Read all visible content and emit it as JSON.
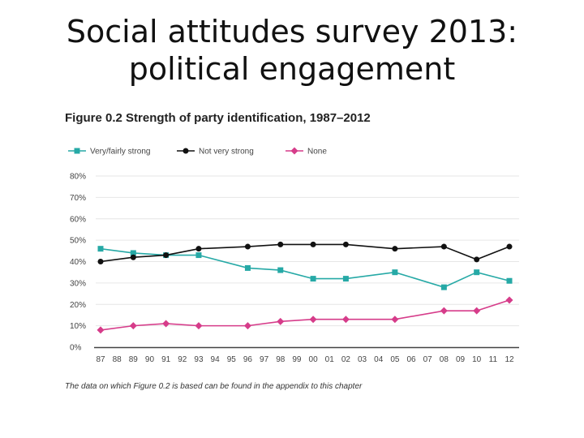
{
  "slide": {
    "title_line1": "Social attitudes survey 2013:",
    "title_line2": "political engagement"
  },
  "chart_data": {
    "type": "line",
    "title": "Figure 0.2 Strength of party identification, 1987–2012",
    "categories": [
      "87",
      "88",
      "89",
      "90",
      "91",
      "92",
      "93",
      "94",
      "95",
      "96",
      "97",
      "98",
      "99",
      "00",
      "01",
      "02",
      "03",
      "04",
      "05",
      "06",
      "07",
      "08",
      "09",
      "10",
      "11",
      "12"
    ],
    "ylim": [
      0,
      80
    ],
    "yticks": [
      "0%",
      "10%",
      "20%",
      "30%",
      "40%",
      "50%",
      "60%",
      "70%",
      "80%"
    ],
    "grid": true,
    "legend_position": "top",
    "series": [
      {
        "name": "Very/fairly strong",
        "color": "#26a9a6",
        "marker": "square",
        "points": [
          [
            "87",
            46
          ],
          [
            "89",
            44
          ],
          [
            "91",
            43
          ],
          [
            "93",
            43
          ],
          [
            "96",
            37
          ],
          [
            "98",
            36
          ],
          [
            "00",
            32
          ],
          [
            "02",
            32
          ],
          [
            "05",
            35
          ],
          [
            "08",
            28
          ],
          [
            "10",
            35
          ],
          [
            "12",
            31
          ]
        ]
      },
      {
        "name": "Not very strong",
        "color": "#111111",
        "marker": "circle",
        "points": [
          [
            "87",
            40
          ],
          [
            "89",
            42
          ],
          [
            "91",
            43
          ],
          [
            "93",
            46
          ],
          [
            "96",
            47
          ],
          [
            "98",
            48
          ],
          [
            "00",
            48
          ],
          [
            "02",
            48
          ],
          [
            "05",
            46
          ],
          [
            "08",
            47
          ],
          [
            "10",
            41
          ],
          [
            "12",
            47
          ]
        ]
      },
      {
        "name": "None",
        "color": "#d63c8a",
        "marker": "diamond",
        "points": [
          [
            "87",
            8
          ],
          [
            "89",
            10
          ],
          [
            "91",
            11
          ],
          [
            "93",
            10
          ],
          [
            "96",
            10
          ],
          [
            "98",
            12
          ],
          [
            "00",
            13
          ],
          [
            "02",
            13
          ],
          [
            "05",
            13
          ],
          [
            "08",
            17
          ],
          [
            "10",
            17
          ],
          [
            "12",
            22
          ]
        ]
      }
    ],
    "footnote": "The data on which Figure 0.2 is based can be found in the appendix to this chapter"
  }
}
